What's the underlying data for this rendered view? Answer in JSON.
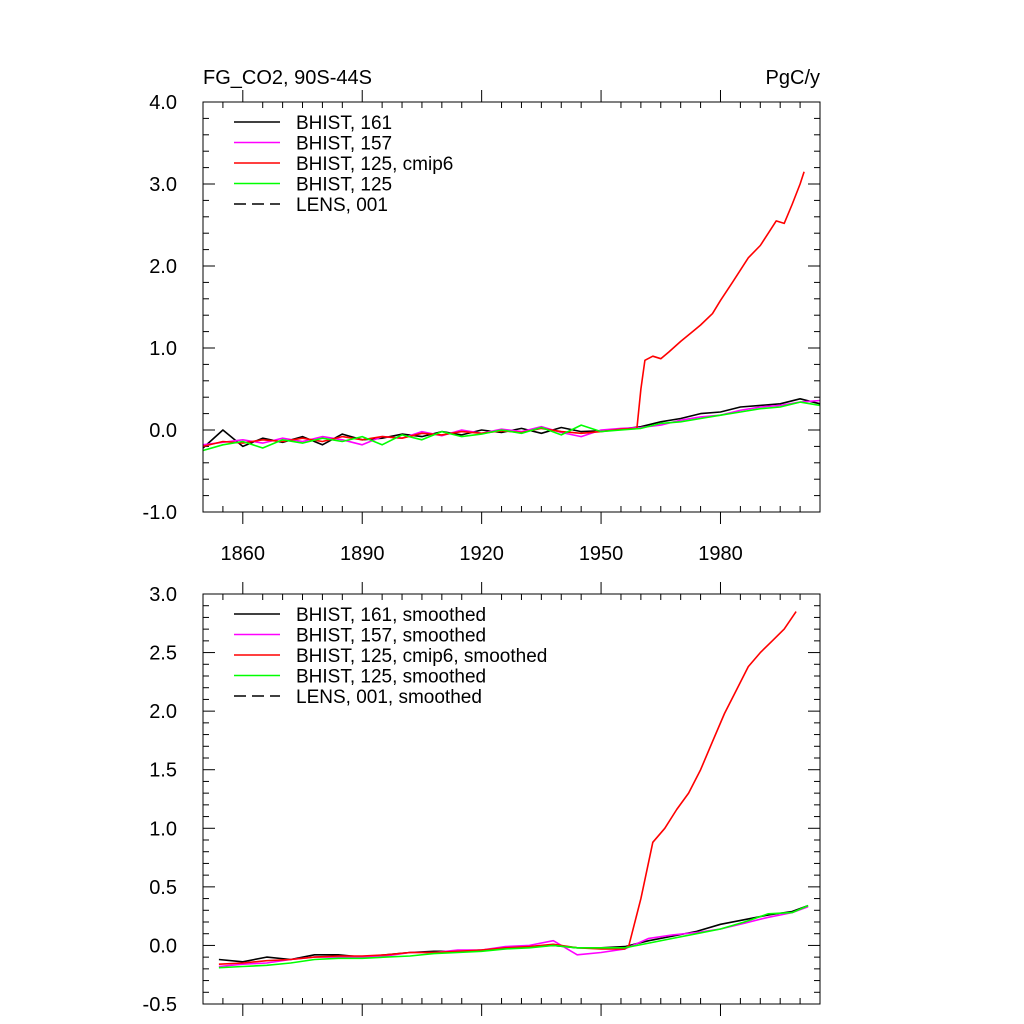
{
  "chart_data": [
    {
      "type": "line",
      "title_left": "FG_CO2, 90S-44S",
      "title_right": "PgC/y",
      "xlabel": "",
      "ylabel": "",
      "xlim": [
        1850,
        2005
      ],
      "ylim": [
        -1.0,
        4.0
      ],
      "x_ticks": [
        1860,
        1890,
        1920,
        1950,
        1980
      ],
      "x_tick_labels": [
        "1860",
        "1890",
        "1920",
        "1950",
        "1980"
      ],
      "y_ticks": [
        -1.0,
        0.0,
        1.0,
        2.0,
        3.0,
        4.0
      ],
      "y_tick_labels": [
        "-1.0",
        "0.0",
        "1.0",
        "2.0",
        "3.0",
        "4.0"
      ],
      "legend_position": "top-left",
      "grid": false,
      "series": [
        {
          "name": "BHIST, 161",
          "color": "#000000",
          "dash": "solid",
          "x": [
            1850,
            1855,
            1860,
            1865,
            1870,
            1875,
            1880,
            1885,
            1890,
            1895,
            1900,
            1905,
            1910,
            1915,
            1920,
            1925,
            1930,
            1935,
            1940,
            1945,
            1950,
            1955,
            1960,
            1965,
            1970,
            1975,
            1980,
            1985,
            1990,
            1995,
            2000,
            2005
          ],
          "y": [
            -0.22,
            0.0,
            -0.2,
            -0.1,
            -0.15,
            -0.08,
            -0.18,
            -0.05,
            -0.12,
            -0.1,
            -0.05,
            -0.08,
            -0.02,
            -0.06,
            0.0,
            -0.03,
            0.02,
            -0.04,
            0.03,
            -0.02,
            -0.01,
            0.01,
            0.04,
            0.1,
            0.14,
            0.2,
            0.22,
            0.28,
            0.3,
            0.32,
            0.38,
            0.32
          ]
        },
        {
          "name": "BHIST, 157",
          "color": "#ff00ff",
          "dash": "solid",
          "x": [
            1850,
            1855,
            1860,
            1865,
            1870,
            1875,
            1880,
            1885,
            1890,
            1895,
            1900,
            1905,
            1910,
            1915,
            1920,
            1925,
            1930,
            1935,
            1940,
            1945,
            1950,
            1955,
            1960,
            1965,
            1970,
            1975,
            1980,
            1985,
            1990,
            1995,
            2000,
            2005
          ],
          "y": [
            -0.18,
            -0.15,
            -0.12,
            -0.16,
            -0.1,
            -0.14,
            -0.08,
            -0.12,
            -0.18,
            -0.08,
            -0.1,
            -0.02,
            -0.07,
            0.0,
            -0.04,
            0.01,
            -0.02,
            0.04,
            -0.03,
            -0.08,
            0.0,
            0.02,
            0.03,
            0.06,
            0.12,
            0.16,
            0.18,
            0.24,
            0.28,
            0.3,
            0.34,
            0.36
          ]
        },
        {
          "name": "BHIST, 125, cmip6",
          "color": "#ff0000",
          "dash": "solid",
          "x": [
            1850,
            1855,
            1860,
            1865,
            1870,
            1875,
            1880,
            1885,
            1890,
            1895,
            1900,
            1905,
            1910,
            1915,
            1920,
            1925,
            1930,
            1935,
            1940,
            1945,
            1950,
            1955,
            1959,
            1960,
            1961,
            1963,
            1965,
            1967,
            1970,
            1973,
            1975,
            1978,
            1980,
            1983,
            1985,
            1987,
            1990,
            1992,
            1994,
            1996,
            1998,
            2000,
            2001
          ],
          "y": [
            -0.2,
            -0.14,
            -0.16,
            -0.12,
            -0.14,
            -0.1,
            -0.14,
            -0.08,
            -0.12,
            -0.08,
            -0.1,
            -0.04,
            -0.06,
            -0.02,
            -0.04,
            -0.01,
            -0.03,
            0.02,
            -0.02,
            -0.04,
            -0.02,
            0.01,
            0.02,
            0.5,
            0.85,
            0.9,
            0.87,
            0.95,
            1.08,
            1.2,
            1.28,
            1.42,
            1.58,
            1.8,
            1.95,
            2.1,
            2.25,
            2.4,
            2.55,
            2.52,
            2.75,
            3.0,
            3.15
          ]
        },
        {
          "name": "BHIST, 125",
          "color": "#00ff00",
          "dash": "solid",
          "x": [
            1850,
            1855,
            1860,
            1865,
            1870,
            1875,
            1880,
            1885,
            1890,
            1895,
            1900,
            1905,
            1910,
            1915,
            1920,
            1925,
            1930,
            1935,
            1940,
            1945,
            1950,
            1955,
            1960,
            1965,
            1970,
            1975,
            1980,
            1985,
            1990,
            1995,
            2000,
            2005
          ],
          "y": [
            -0.25,
            -0.18,
            -0.14,
            -0.22,
            -0.12,
            -0.16,
            -0.1,
            -0.14,
            -0.08,
            -0.18,
            -0.06,
            -0.12,
            -0.02,
            -0.08,
            -0.05,
            0.0,
            -0.04,
            0.03,
            -0.06,
            0.06,
            -0.02,
            0.0,
            0.02,
            0.08,
            0.1,
            0.14,
            0.18,
            0.22,
            0.26,
            0.28,
            0.34,
            0.3
          ]
        },
        {
          "name": "LENS, 001",
          "color": "#000000",
          "dash": "dashed",
          "x": [],
          "y": []
        }
      ]
    },
    {
      "type": "line",
      "title_left": "",
      "title_right": "",
      "xlabel": "",
      "ylabel": "",
      "xlim": [
        1850,
        2005
      ],
      "ylim": [
        -0.5,
        3.0
      ],
      "x_ticks": [
        1860,
        1890,
        1920,
        1950,
        1980
      ],
      "x_tick_labels": [],
      "y_ticks": [
        -0.5,
        0.0,
        0.5,
        1.0,
        1.5,
        2.0,
        2.5,
        3.0
      ],
      "y_tick_labels": [
        "-0.5",
        "0.0",
        "0.5",
        "1.0",
        "1.5",
        "2.0",
        "2.5",
        "3.0"
      ],
      "legend_position": "top-left",
      "grid": false,
      "series": [
        {
          "name": "BHIST, 161, smoothed",
          "color": "#000000",
          "dash": "solid",
          "x": [
            1854,
            1860,
            1866,
            1872,
            1878,
            1884,
            1890,
            1896,
            1902,
            1908,
            1914,
            1920,
            1926,
            1932,
            1938,
            1944,
            1950,
            1956,
            1962,
            1968,
            1974,
            1980,
            1986,
            1992,
            1998,
            2002
          ],
          "y": [
            -0.12,
            -0.14,
            -0.1,
            -0.12,
            -0.08,
            -0.08,
            -0.1,
            -0.08,
            -0.06,
            -0.05,
            -0.05,
            -0.04,
            -0.02,
            -0.01,
            0.0,
            -0.02,
            -0.02,
            -0.01,
            0.04,
            0.08,
            0.12,
            0.18,
            0.22,
            0.26,
            0.29,
            0.34
          ]
        },
        {
          "name": "BHIST, 157, smoothed",
          "color": "#ff00ff",
          "dash": "solid",
          "x": [
            1854,
            1860,
            1866,
            1872,
            1878,
            1884,
            1890,
            1896,
            1902,
            1908,
            1914,
            1920,
            1926,
            1932,
            1938,
            1944,
            1950,
            1956,
            1962,
            1968,
            1974,
            1980,
            1986,
            1992,
            1998,
            2002
          ],
          "y": [
            -0.18,
            -0.16,
            -0.15,
            -0.12,
            -0.1,
            -0.1,
            -0.1,
            -0.09,
            -0.06,
            -0.06,
            -0.04,
            -0.04,
            -0.01,
            0.0,
            0.04,
            -0.08,
            -0.06,
            -0.03,
            0.06,
            0.09,
            0.11,
            0.14,
            0.19,
            0.24,
            0.28,
            0.33
          ]
        },
        {
          "name": "BHIST, 125, cmip6, smoothed",
          "color": "#ff0000",
          "dash": "solid",
          "x": [
            1854,
            1860,
            1866,
            1872,
            1878,
            1884,
            1890,
            1896,
            1902,
            1908,
            1914,
            1920,
            1926,
            1932,
            1938,
            1944,
            1950,
            1956,
            1957,
            1960,
            1963,
            1966,
            1969,
            1972,
            1975,
            1978,
            1981,
            1984,
            1987,
            1990,
            1993,
            1996,
            1999
          ],
          "y": [
            -0.16,
            -0.15,
            -0.13,
            -0.12,
            -0.1,
            -0.09,
            -0.09,
            -0.08,
            -0.06,
            -0.06,
            -0.05,
            -0.04,
            -0.02,
            -0.01,
            0.01,
            -0.02,
            -0.03,
            -0.03,
            0.0,
            0.4,
            0.88,
            1.0,
            1.16,
            1.3,
            1.5,
            1.74,
            1.98,
            2.18,
            2.38,
            2.5,
            2.6,
            2.7,
            2.85
          ]
        },
        {
          "name": "BHIST, 125, smoothed",
          "color": "#00ff00",
          "dash": "solid",
          "x": [
            1854,
            1860,
            1866,
            1872,
            1878,
            1884,
            1890,
            1896,
            1902,
            1908,
            1914,
            1920,
            1926,
            1932,
            1938,
            1944,
            1950,
            1956,
            1962,
            1968,
            1974,
            1980,
            1986,
            1992,
            1998,
            2002
          ],
          "y": [
            -0.19,
            -0.18,
            -0.17,
            -0.15,
            -0.12,
            -0.11,
            -0.11,
            -0.1,
            -0.09,
            -0.07,
            -0.06,
            -0.05,
            -0.03,
            -0.02,
            0.0,
            -0.02,
            -0.02,
            -0.02,
            0.02,
            0.06,
            0.1,
            0.14,
            0.2,
            0.27,
            0.28,
            0.34
          ]
        },
        {
          "name": "LENS, 001, smoothed",
          "color": "#000000",
          "dash": "dashed",
          "x": [],
          "y": []
        }
      ]
    }
  ]
}
